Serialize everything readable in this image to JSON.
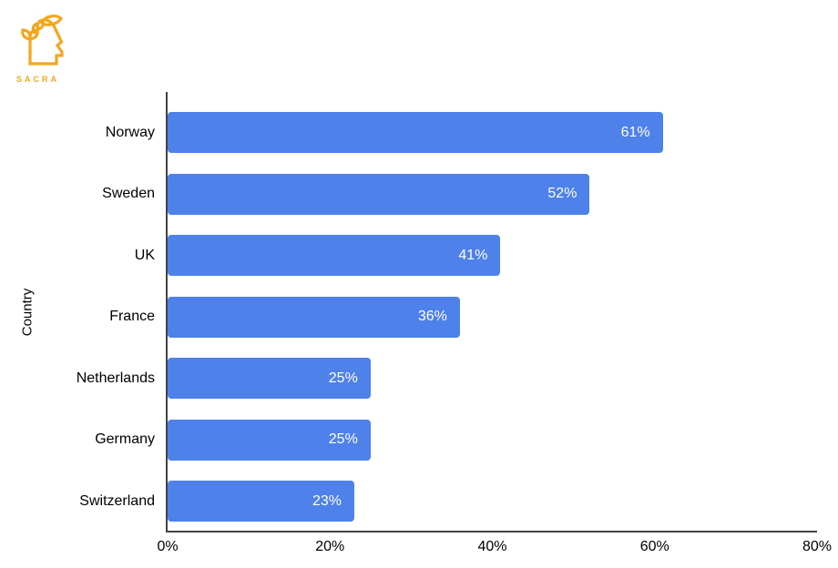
{
  "logo": {
    "text": "SACRA",
    "color": "#F2A71E",
    "icon": "head-with-leaves-icon"
  },
  "chart_data": {
    "type": "bar",
    "orientation": "horizontal",
    "title": "",
    "categories": [
      "Norway",
      "Sweden",
      "UK",
      "France",
      "Netherlands",
      "Germany",
      "Switzerland"
    ],
    "values": [
      61,
      52,
      41,
      36,
      25,
      25,
      23
    ],
    "value_labels": [
      "61%",
      "52%",
      "41%",
      "36%",
      "25%",
      "25%",
      "23%"
    ],
    "xlabel": "",
    "ylabel": "Country",
    "x_ticks": [
      "0%",
      "20%",
      "40%",
      "60%",
      "80%"
    ],
    "xlim": [
      0,
      80
    ],
    "bar_color": "#4E81E9",
    "value_label_color": "#FFFFFF",
    "axis_color": "#424242",
    "grid": false,
    "legend_position": "none"
  }
}
